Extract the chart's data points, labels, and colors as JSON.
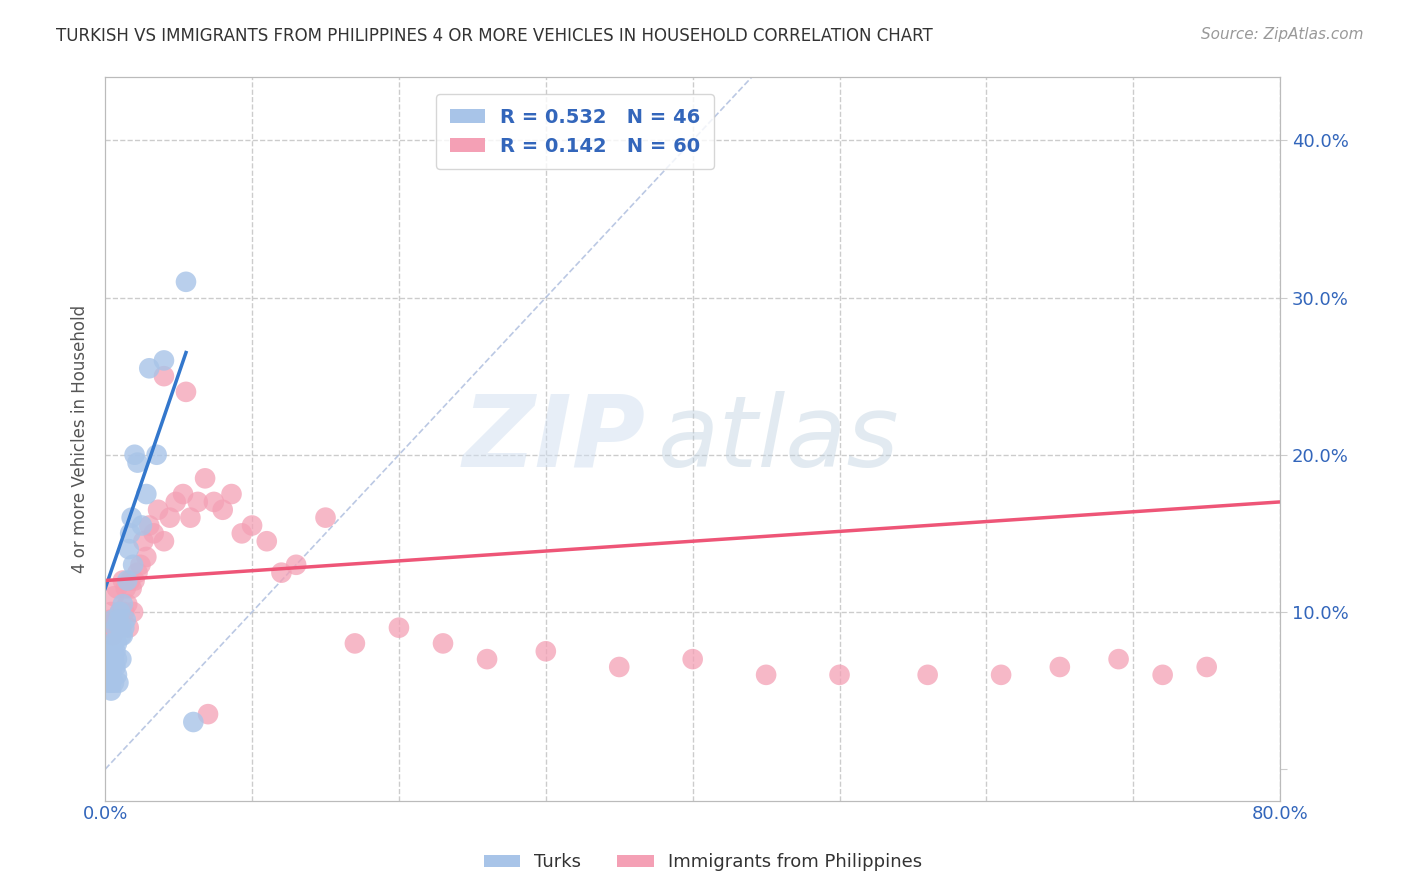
{
  "title": "TURKISH VS IMMIGRANTS FROM PHILIPPINES 4 OR MORE VEHICLES IN HOUSEHOLD CORRELATION CHART",
  "source": "Source: ZipAtlas.com",
  "ylabel": "4 or more Vehicles in Household",
  "ytick_values": [
    0.0,
    0.1,
    0.2,
    0.3,
    0.4
  ],
  "xlim": [
    0.0,
    0.8
  ],
  "ylim": [
    -0.02,
    0.44
  ],
  "turks_R": 0.532,
  "turks_N": 46,
  "philippines_R": 0.142,
  "philippines_N": 60,
  "turks_color": "#a8c4e8",
  "philippines_color": "#f4a0b5",
  "turks_line_color": "#3377cc",
  "philippines_line_color": "#ee5577",
  "diagonal_color": "#aabbdd",
  "legend_text_color": "#3366bb",
  "title_color": "#333333",
  "watermark_zip": "ZIP",
  "watermark_atlas": "atlas",
  "background_color": "#ffffff",
  "grid_color": "#cccccc",
  "turks_x": [
    0.001,
    0.001,
    0.002,
    0.002,
    0.003,
    0.003,
    0.003,
    0.004,
    0.004,
    0.004,
    0.005,
    0.005,
    0.005,
    0.006,
    0.006,
    0.006,
    0.007,
    0.007,
    0.007,
    0.008,
    0.008,
    0.008,
    0.009,
    0.009,
    0.01,
    0.01,
    0.011,
    0.011,
    0.012,
    0.012,
    0.013,
    0.014,
    0.015,
    0.016,
    0.017,
    0.018,
    0.019,
    0.02,
    0.022,
    0.025,
    0.028,
    0.03,
    0.035,
    0.04,
    0.055,
    0.06
  ],
  "turks_y": [
    0.065,
    0.06,
    0.055,
    0.07,
    0.075,
    0.06,
    0.065,
    0.05,
    0.055,
    0.08,
    0.095,
    0.065,
    0.075,
    0.07,
    0.08,
    0.055,
    0.065,
    0.075,
    0.09,
    0.06,
    0.08,
    0.07,
    0.095,
    0.055,
    0.09,
    0.1,
    0.085,
    0.07,
    0.105,
    0.085,
    0.09,
    0.095,
    0.12,
    0.14,
    0.15,
    0.16,
    0.13,
    0.2,
    0.195,
    0.155,
    0.175,
    0.255,
    0.2,
    0.26,
    0.31,
    0.03
  ],
  "philippines_x": [
    0.002,
    0.003,
    0.004,
    0.005,
    0.006,
    0.007,
    0.008,
    0.009,
    0.01,
    0.011,
    0.012,
    0.013,
    0.014,
    0.015,
    0.016,
    0.017,
    0.018,
    0.019,
    0.02,
    0.022,
    0.024,
    0.026,
    0.028,
    0.03,
    0.033,
    0.036,
    0.04,
    0.044,
    0.048,
    0.053,
    0.058,
    0.063,
    0.068,
    0.074,
    0.08,
    0.086,
    0.093,
    0.1,
    0.11,
    0.12,
    0.13,
    0.15,
    0.17,
    0.2,
    0.23,
    0.26,
    0.3,
    0.35,
    0.4,
    0.45,
    0.5,
    0.56,
    0.61,
    0.65,
    0.69,
    0.72,
    0.75,
    0.04,
    0.055,
    0.07
  ],
  "philippines_y": [
    0.09,
    0.095,
    0.1,
    0.085,
    0.11,
    0.095,
    0.115,
    0.095,
    0.1,
    0.09,
    0.12,
    0.1,
    0.115,
    0.105,
    0.09,
    0.12,
    0.115,
    0.1,
    0.12,
    0.125,
    0.13,
    0.145,
    0.135,
    0.155,
    0.15,
    0.165,
    0.145,
    0.16,
    0.17,
    0.175,
    0.16,
    0.17,
    0.185,
    0.17,
    0.165,
    0.175,
    0.15,
    0.155,
    0.145,
    0.125,
    0.13,
    0.16,
    0.08,
    0.09,
    0.08,
    0.07,
    0.075,
    0.065,
    0.07,
    0.06,
    0.06,
    0.06,
    0.06,
    0.065,
    0.07,
    0.06,
    0.065,
    0.25,
    0.24,
    0.035
  ],
  "turks_line_x": [
    0.0,
    0.055
  ],
  "turks_line_y": [
    0.115,
    0.265
  ],
  "philippines_line_x": [
    0.0,
    0.8
  ],
  "philippines_line_y": [
    0.12,
    0.17
  ]
}
